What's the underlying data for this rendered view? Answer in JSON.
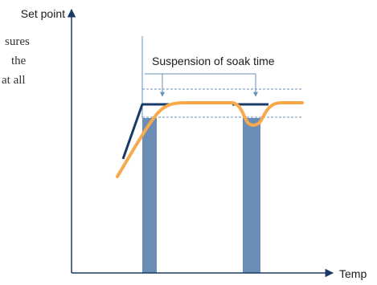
{
  "diagram": {
    "y_axis_label": "Set point",
    "x_axis_label": "Temp",
    "annotation": "Suspension of soak time",
    "body_text_fragments": [
      "sures",
      "the",
      "at all"
    ],
    "colors": {
      "axis": "#1a3a66",
      "setpoint_line": "#1a3a66",
      "process_curve": "#f7a94b",
      "soak_bar": "#6a8db5",
      "band_line": "#6a8db5",
      "annotation_bracket": "#6a8db5",
      "text": "#1a1a1a"
    }
  }
}
